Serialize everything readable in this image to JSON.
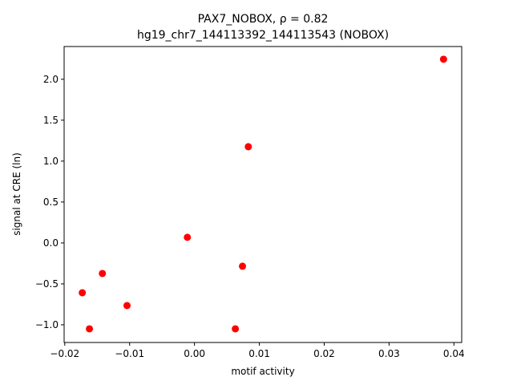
{
  "chart_data": {
    "type": "scatter",
    "title": "PAX7_NOBOX, ρ = 0.82",
    "subtitle": "hg19_chr7_144113392_144113543 (NOBOX)",
    "x_label": "motif activity",
    "y_label": "signal at CRE (ln)",
    "color": "#ff0000",
    "series": [
      {
        "x": [
          0.0384,
          0.0083,
          -0.0011,
          0.0074,
          -0.0142,
          -0.0173,
          -0.0104,
          -0.0162,
          0.0063
        ],
        "values": [
          2.245,
          1.176,
          0.069,
          -0.284,
          -0.373,
          -0.608,
          -0.765,
          -1.049,
          -1.049
        ]
      }
    ],
    "xlim": [
      -0.0201,
      0.0412
    ],
    "xticks": [
      {
        "value": -0.02,
        "label": "−0.02"
      },
      {
        "value": -0.01,
        "label": "−0.01"
      },
      {
        "value": 0,
        "label": "0.00"
      },
      0.01,
      0.02,
      0.03,
      0.04
    ],
    "ylim": [
      -1.216,
      2.4
    ],
    "yticks": [
      {
        "value": -1,
        "label": "−1.0"
      },
      {
        "value": -0.5,
        "label": "−0.5"
      },
      {
        "value": 0,
        "label": "0.0"
      },
      0.5,
      {
        "value": 1,
        "label": "1.0"
      },
      1.5,
      {
        "value": 2,
        "label": "2.0"
      }
    ]
  }
}
